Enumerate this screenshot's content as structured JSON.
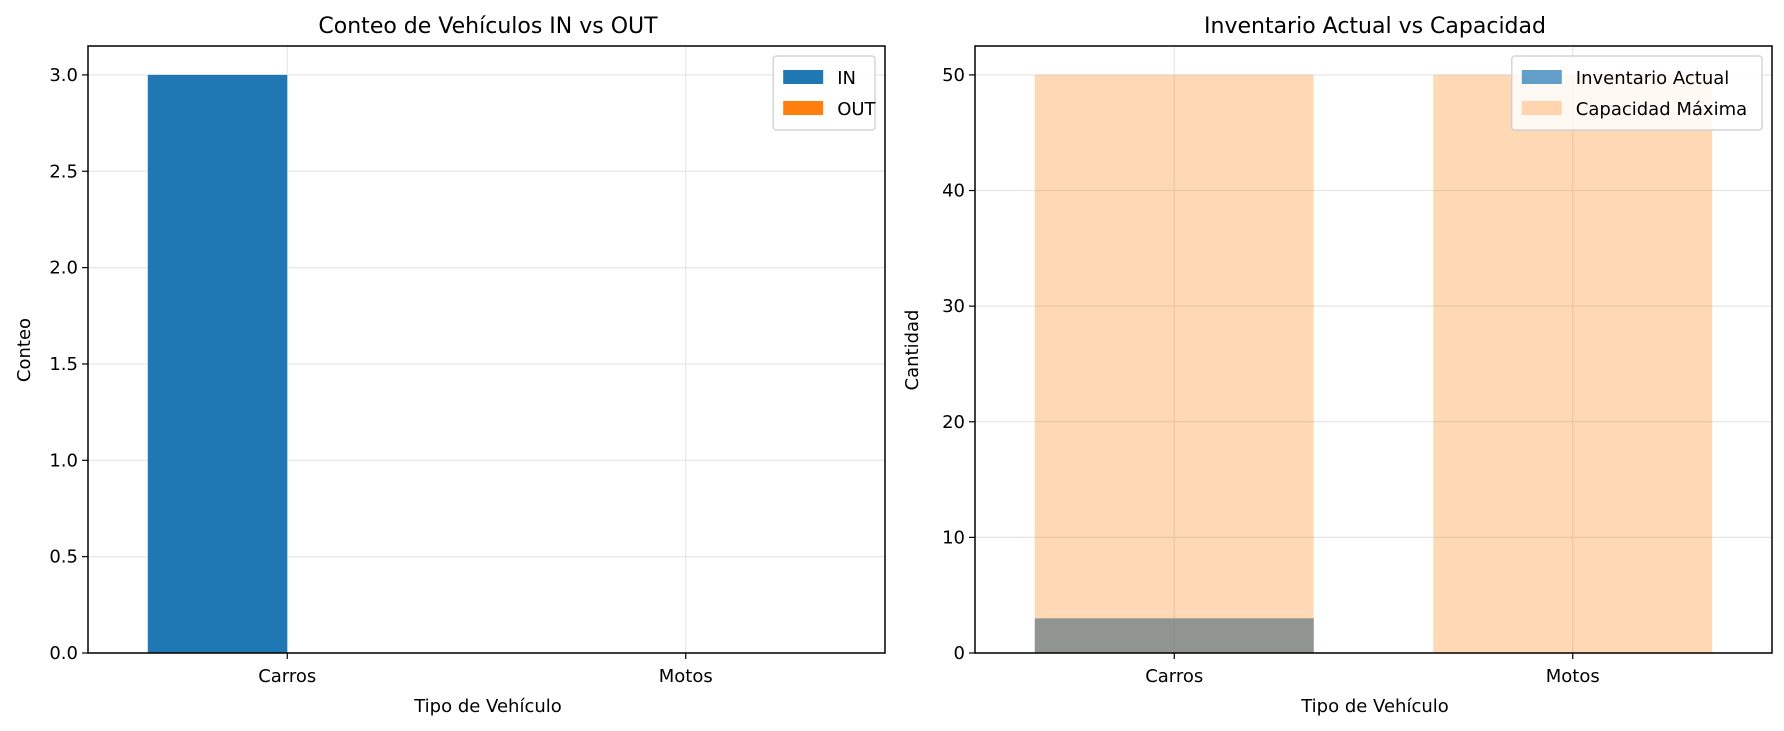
{
  "chart_data": [
    {
      "type": "bar",
      "title": "Conteo de Vehículos IN vs OUT",
      "xlabel": "Tipo de Vehículo",
      "ylabel": "Conteo",
      "categories": [
        "Carros",
        "Motos"
      ],
      "series": [
        {
          "name": "IN",
          "values": [
            3,
            0
          ],
          "color": "#1f77b4"
        },
        {
          "name": "OUT",
          "values": [
            0,
            0
          ],
          "color": "#ff7f0e"
        }
      ],
      "ylim": [
        0,
        3.15
      ],
      "yticks": [
        0.0,
        0.5,
        1.0,
        1.5,
        2.0,
        2.5,
        3.0
      ],
      "ytick_labels": [
        "0.0",
        "0.5",
        "1.0",
        "1.5",
        "2.0",
        "2.5",
        "3.0"
      ],
      "grid": true,
      "legend": "upper right"
    },
    {
      "type": "bar",
      "title": "Inventario Actual vs Capacidad",
      "xlabel": "Tipo de Vehículo",
      "ylabel": "Cantidad",
      "categories": [
        "Carros",
        "Motos"
      ],
      "series": [
        {
          "name": "Inventario Actual",
          "values": [
            3,
            0
          ],
          "color": "#1f77b4"
        },
        {
          "name": "Capacidad Máxima",
          "values": [
            50,
            50
          ],
          "color": "#ff7f0e"
        }
      ],
      "ylim": [
        0,
        52.5
      ],
      "yticks": [
        0,
        10,
        20,
        30,
        40,
        50
      ],
      "ytick_labels": [
        "0",
        "10",
        "20",
        "30",
        "40",
        "50"
      ],
      "grid": true,
      "legend": "upper right"
    }
  ]
}
